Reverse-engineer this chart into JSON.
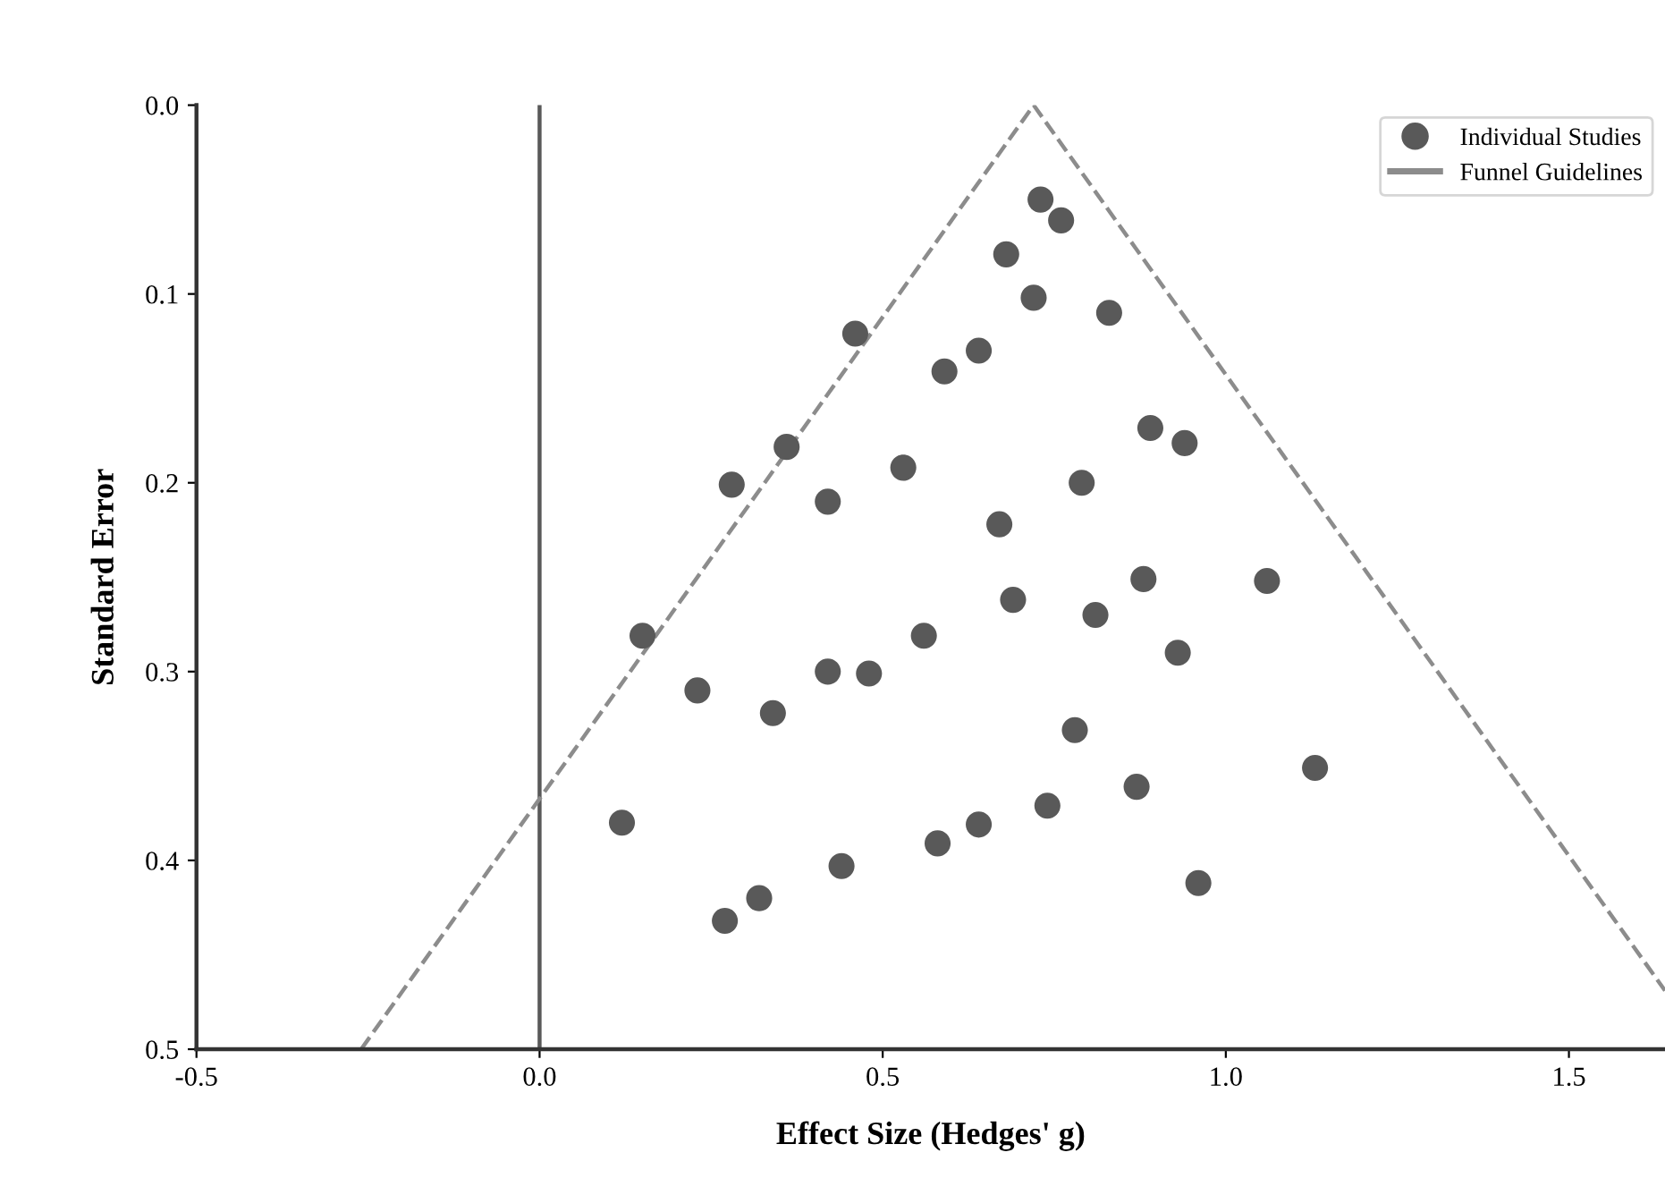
{
  "chart_data": {
    "type": "scatter",
    "xlabel": "Effect Size (Hedges' g)",
    "ylabel": "Standard Error",
    "xlim": [
      -0.5,
      1.64
    ],
    "xticks": [
      -0.5,
      {
        "value": 0.0,
        "label": "0.0"
      },
      0.5,
      {
        "value": 1.0,
        "label": "1.0"
      },
      1.5
    ],
    "ylim": [
      0.5,
      0.0
    ],
    "yticks": [
      {
        "value": 0.0,
        "label": "0.0"
      },
      0.1,
      0.2,
      0.3,
      0.4,
      0.5
    ],
    "legend": "top right",
    "marker": "circle",
    "grid": false,
    "ref_lines": [
      {
        "axis": "x",
        "value": 0.0,
        "color": "#595959",
        "line_style": "solid"
      }
    ],
    "series": [
      {
        "name": "Individual Studies",
        "color": "#595959",
        "x": [
          0.73,
          0.76,
          0.68,
          0.72,
          0.83,
          0.46,
          0.64,
          0.59,
          0.89,
          0.94,
          0.36,
          0.53,
          0.28,
          0.79,
          0.42,
          0.67,
          0.88,
          1.06,
          0.69,
          0.81,
          0.15,
          0.56,
          0.93,
          0.42,
          0.48,
          0.23,
          0.34,
          0.78,
          1.13,
          0.87,
          0.74,
          0.12,
          0.64,
          0.58,
          0.44,
          0.96,
          0.32,
          0.27
        ],
        "values": [
          0.05,
          0.061,
          0.079,
          0.102,
          0.11,
          0.121,
          0.13,
          0.141,
          0.171,
          0.179,
          0.181,
          0.192,
          0.201,
          0.2,
          0.21,
          0.222,
          0.251,
          0.252,
          0.262,
          0.27,
          0.281,
          0.281,
          0.29,
          0.3,
          0.301,
          0.31,
          0.322,
          0.331,
          0.351,
          0.361,
          0.371,
          0.38,
          0.381,
          0.391,
          0.403,
          0.412,
          0.42,
          0.432
        ]
      },
      {
        "name": "Funnel Guidelines",
        "type": "line",
        "color": "#8c8c8c",
        "line_style": "dashed",
        "marker": "none",
        "x": [
          -0.26,
          0.72,
          1.64
        ],
        "values": [
          0.5,
          0.0,
          0.469
        ]
      }
    ]
  }
}
